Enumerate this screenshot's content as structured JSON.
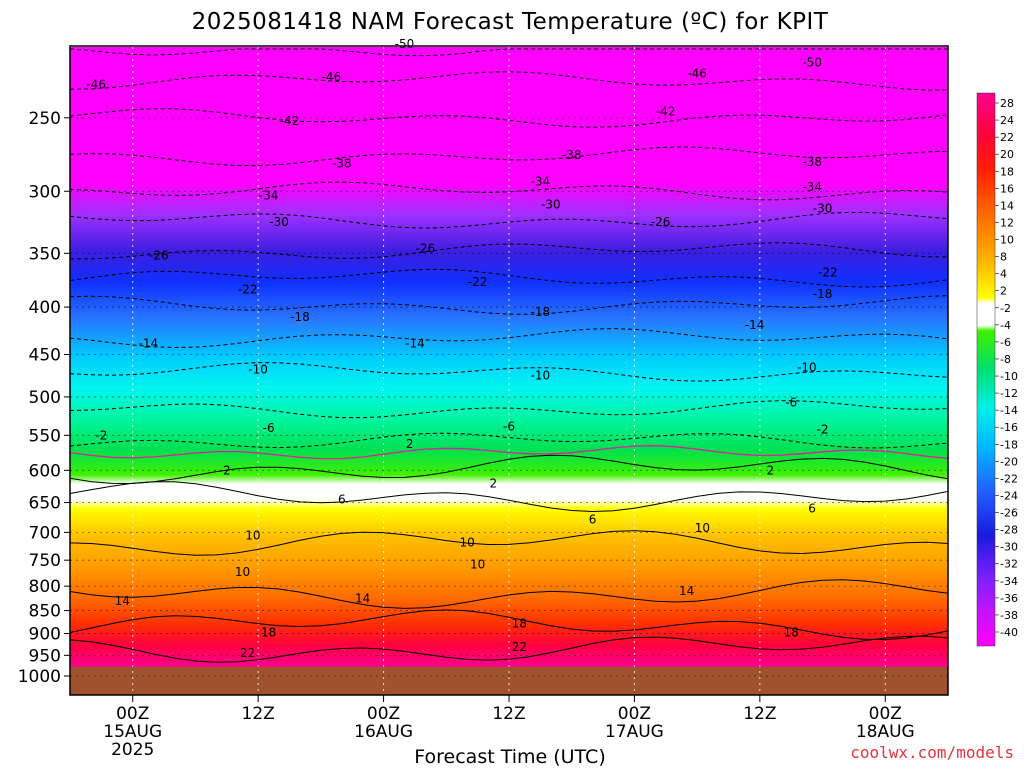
{
  "chart_data": {
    "type": "heatmap",
    "title": "2025081418 NAM Forecast Temperature (ºC) for KPIT",
    "xlabel": "Forecast Time (UTC)",
    "ylabel": "",
    "credit": "coolwx.com/models",
    "x_ticks": [
      {
        "hour": 6,
        "line1": "00Z",
        "line2": "15AUG",
        "line3": "2025"
      },
      {
        "hour": 18,
        "line1": "12Z",
        "line2": "",
        "line3": ""
      },
      {
        "hour": 30,
        "line1": "00Z",
        "line2": "16AUG",
        "line3": ""
      },
      {
        "hour": 42,
        "line1": "12Z",
        "line2": "",
        "line3": ""
      },
      {
        "hour": 54,
        "line1": "00Z",
        "line2": "17AUG",
        "line3": ""
      },
      {
        "hour": 66,
        "line1": "12Z",
        "line2": "",
        "line3": ""
      },
      {
        "hour": 78,
        "line1": "00Z",
        "line2": "18AUG",
        "line3": ""
      }
    ],
    "xlim_hours": [
      0,
      84
    ],
    "y_axis_pressure_hPa": [
      250,
      300,
      350,
      400,
      450,
      500,
      550,
      600,
      650,
      700,
      750,
      800,
      850,
      900,
      950,
      1000
    ],
    "ylim_hPa": [
      200,
      1000
    ],
    "y_scale": "log",
    "ground_level_hPa": 985,
    "colorbar": {
      "labels": [
        28,
        24,
        22,
        20,
        18,
        16,
        14,
        12,
        10,
        8,
        4,
        2,
        -2,
        -4,
        -6,
        -8,
        -10,
        -12,
        -14,
        -16,
        -18,
        -20,
        -22,
        -24,
        -26,
        -28,
        -30,
        -32,
        -34,
        -36,
        -38,
        -40
      ]
    },
    "contours_dashed": [
      {
        "value": -50,
        "p": 210
      },
      {
        "value": -46,
        "p": 228
      },
      {
        "value": -42,
        "p": 250
      },
      {
        "value": -38,
        "p": 275
      },
      {
        "value": -34,
        "p": 300
      },
      {
        "value": -30,
        "p": 322
      },
      {
        "value": -26,
        "p": 348
      },
      {
        "value": -22,
        "p": 372
      },
      {
        "value": -18,
        "p": 398
      },
      {
        "value": -14,
        "p": 432
      },
      {
        "value": -10,
        "p": 470
      },
      {
        "value": -6,
        "p": 515
      },
      {
        "value": -2,
        "p": 558
      }
    ],
    "contours_solid": [
      {
        "value": 2,
        "p": 598
      },
      {
        "value": 6,
        "p": 640
      },
      {
        "value": 10,
        "p": 720
      },
      {
        "value": 14,
        "p": 815
      },
      {
        "value": 18,
        "p": 880
      },
      {
        "value": 22,
        "p": 935
      }
    ],
    "contour_labels": [
      {
        "text": "-50",
        "hour": 32,
        "p": 208
      },
      {
        "text": "-50",
        "hour": 71,
        "p": 218
      },
      {
        "text": "-46",
        "hour": 2.5,
        "p": 230
      },
      {
        "text": "-46",
        "hour": 25,
        "p": 226
      },
      {
        "text": "-46",
        "hour": 60,
        "p": 224
      },
      {
        "text": "-42",
        "hour": 21,
        "p": 252
      },
      {
        "text": "-42",
        "hour": 57,
        "p": 246
      },
      {
        "text": "-38",
        "hour": 26,
        "p": 280
      },
      {
        "text": "-38",
        "hour": 48,
        "p": 274
      },
      {
        "text": "-38",
        "hour": 71,
        "p": 279
      },
      {
        "text": "-34",
        "hour": 19,
        "p": 303
      },
      {
        "text": "-34",
        "hour": 45,
        "p": 293
      },
      {
        "text": "-34",
        "hour": 71,
        "p": 297
      },
      {
        "text": "-30",
        "hour": 20,
        "p": 324
      },
      {
        "text": "-30",
        "hour": 46,
        "p": 310
      },
      {
        "text": "-30",
        "hour": 72,
        "p": 313
      },
      {
        "text": "-26",
        "hour": 8.5,
        "p": 352
      },
      {
        "text": "-26",
        "hour": 34,
        "p": 346
      },
      {
        "text": "-26",
        "hour": 56.5,
        "p": 324
      },
      {
        "text": "-22",
        "hour": 17,
        "p": 383
      },
      {
        "text": "-22",
        "hour": 39,
        "p": 376
      },
      {
        "text": "-22",
        "hour": 72.5,
        "p": 367
      },
      {
        "text": "-18",
        "hour": 22,
        "p": 410
      },
      {
        "text": "-18",
        "hour": 45,
        "p": 405
      },
      {
        "text": "-18",
        "hour": 72,
        "p": 387
      },
      {
        "text": "-14",
        "hour": 7.5,
        "p": 438
      },
      {
        "text": "-14",
        "hour": 33,
        "p": 438
      },
      {
        "text": "-14",
        "hour": 65.5,
        "p": 418
      },
      {
        "text": "-10",
        "hour": 18,
        "p": 467
      },
      {
        "text": "-10",
        "hour": 45,
        "p": 474
      },
      {
        "text": "-10",
        "hour": 70.5,
        "p": 465
      },
      {
        "text": "-6",
        "hour": 19,
        "p": 540
      },
      {
        "text": "-6",
        "hour": 42,
        "p": 538
      },
      {
        "text": "-6",
        "hour": 69,
        "p": 507
      },
      {
        "text": "-2",
        "hour": 3,
        "p": 550
      },
      {
        "text": "-2",
        "hour": 72,
        "p": 542
      },
      {
        "text": "2",
        "hour": 32.5,
        "p": 562
      },
      {
        "text": "2",
        "hour": 15,
        "p": 600
      },
      {
        "text": "2",
        "hour": 40.5,
        "p": 620
      },
      {
        "text": "2",
        "hour": 67,
        "p": 600
      },
      {
        "text": "6",
        "hour": 26,
        "p": 645
      },
      {
        "text": "6",
        "hour": 50,
        "p": 678
      },
      {
        "text": "6",
        "hour": 71,
        "p": 660
      },
      {
        "text": "10",
        "hour": 17.5,
        "p": 705
      },
      {
        "text": "10",
        "hour": 38,
        "p": 718
      },
      {
        "text": "10",
        "hour": 39,
        "p": 758
      },
      {
        "text": "10",
        "hour": 60.5,
        "p": 692
      },
      {
        "text": "10",
        "hour": 16.5,
        "p": 772
      },
      {
        "text": "14",
        "hour": 5,
        "p": 830
      },
      {
        "text": "14",
        "hour": 28,
        "p": 825
      },
      {
        "text": "14",
        "hour": 59,
        "p": 810
      },
      {
        "text": "18",
        "hour": 19,
        "p": 898
      },
      {
        "text": "18",
        "hour": 43,
        "p": 878
      },
      {
        "text": "18",
        "hour": 69,
        "p": 898
      },
      {
        "text": "22",
        "hour": 17,
        "p": 945
      },
      {
        "text": "22",
        "hour": 43,
        "p": 930
      }
    ]
  }
}
